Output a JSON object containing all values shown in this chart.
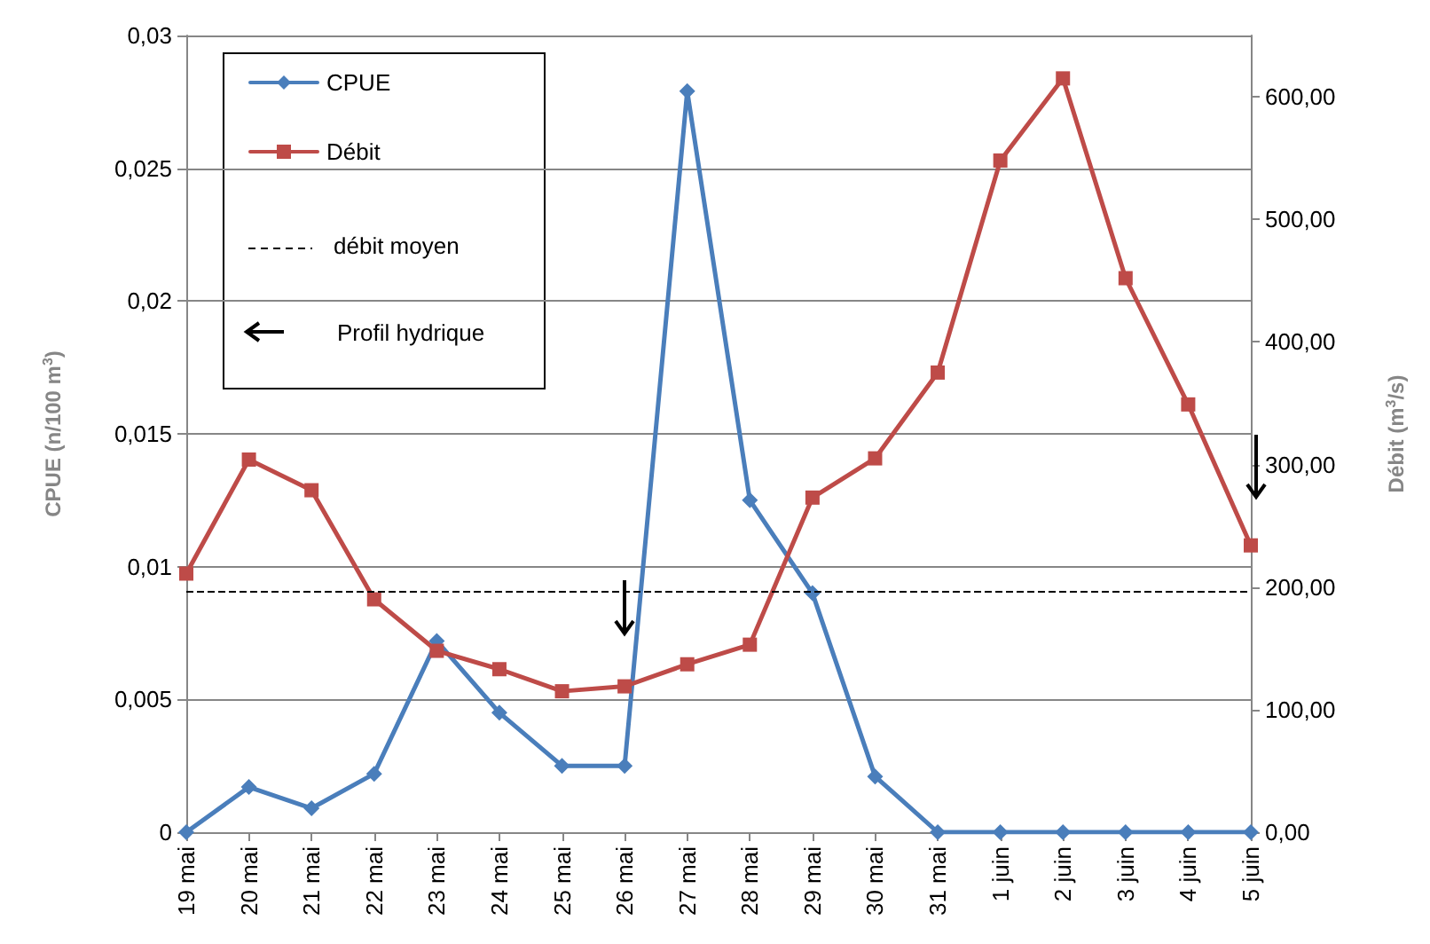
{
  "chart_data": {
    "type": "line",
    "ylabel": "CPUE (n/100 m$^{3}$)",
    "y2label": "Débit (m$^{3}$/s)",
    "categories": [
      "19 mai",
      "20 mai",
      "21 mai",
      "22 mai",
      "23 mai",
      "24 mai",
      "25 mai",
      "26 mai",
      "27 mai",
      "28 mai",
      "29 mai",
      "30 mai",
      "31 mai",
      "1 juin",
      "2 juin",
      "3 juin",
      "4 juin",
      "5 juin"
    ],
    "series": [
      {
        "name": "CPUE",
        "color": "#4a7ebb",
        "marker": "diamond",
        "values": [
          0,
          0.0017,
          0.0009,
          0.0022,
          0.0072,
          0.0045,
          0.0025,
          0.0025,
          0.0279,
          0.0125,
          0.009,
          0.0021,
          0,
          0,
          0,
          0,
          0,
          0
        ]
      },
      {
        "name": "Débit",
        "color": "#be4b48",
        "marker": "square",
        "axis": "y2",
        "values": [
          211,
          304,
          279,
          190,
          148,
          133,
          115,
          119,
          137,
          153,
          273,
          305,
          375,
          548,
          615,
          452,
          349,
          234
        ]
      }
    ],
    "ylim": [
      0,
      0.03
    ],
    "yticks": [
      {
        "value": 0,
        "label": "0"
      },
      {
        "value": 0.005,
        "label": "0,005"
      },
      {
        "value": 0.01,
        "label": "0,01"
      },
      {
        "value": 0.015,
        "label": "0,015"
      },
      {
        "value": 0.02,
        "label": "0,02"
      },
      {
        "value": 0.025,
        "label": "0,025"
      },
      {
        "value": 0.03,
        "label": "0,03"
      }
    ],
    "y2lim": [
      0,
      650
    ],
    "y2ticks": [
      {
        "value": 0,
        "label": "0,00"
      },
      {
        "value": 100,
        "label": "100,00"
      },
      {
        "value": 200,
        "label": "200,00"
      },
      {
        "value": 300,
        "label": "300,00"
      },
      {
        "value": 400,
        "label": "400,00"
      },
      {
        "value": 500,
        "label": "500,00"
      },
      {
        "value": 600,
        "label": "600,00"
      }
    ],
    "ref_lines": [
      {
        "axis": "y2",
        "value": 196,
        "label": "débit moyen",
        "color": "#000000",
        "line_style": "dashed"
      }
    ],
    "annotations": [
      "Profil hydrique"
    ],
    "grid": "y",
    "legend": "top left"
  }
}
